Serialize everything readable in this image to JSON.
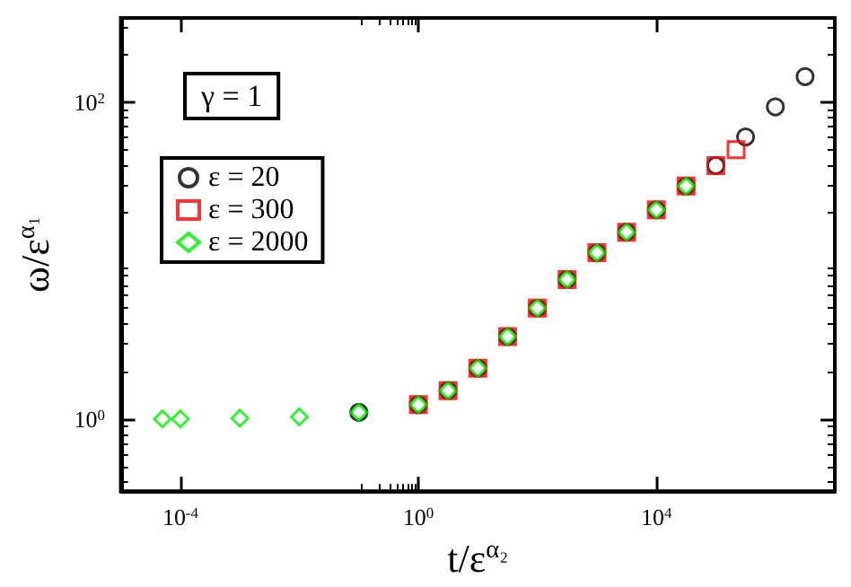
{
  "chart_data": {
    "type": "scatter",
    "xlabel": "t/ε$^{α₂}$",
    "ylabel": "ω/ε$^{α₁}$",
    "log": "xy",
    "xlim": [
      1e-05,
      10000000
    ],
    "ylim": [
      0.35,
      340
    ],
    "xticks": [
      {
        "value": 0.0001,
        "label": "10$^{-4}$"
      },
      {
        "value": 1,
        "label": "10$^{0}$"
      },
      {
        "value": 10000,
        "label": "10$^{4}$"
      }
    ],
    "yticks": [
      {
        "value": 1,
        "label": "10$^{0}$"
      },
      {
        "value": 100,
        "label": "10$^{2}$"
      }
    ],
    "grid": false,
    "legend": "top left",
    "annotations": [
      "γ = 1"
    ],
    "series": [
      {
        "name": "ε = 20",
        "color": "#000000",
        "marker": "circle",
        "x": [
          0.1,
          1,
          3.16,
          10,
          31.6,
          100,
          316,
          1000,
          3162,
          10000,
          31623,
          100000,
          316228,
          1000000,
          3162278
        ],
        "values": [
          1.1,
          1.23,
          1.51,
          2.09,
          3.31,
          5.01,
          7.59,
          11.2,
          15.1,
          20.9,
          29.5,
          39.8,
          60.3,
          93.3,
          145
        ]
      },
      {
        "name": "ε = 300",
        "color": "#ff0000",
        "marker": "square",
        "x": [
          1,
          3.16,
          10,
          31.6,
          100,
          316,
          1000,
          3162,
          10000,
          31623,
          100000,
          218776
        ],
        "values": [
          1.23,
          1.51,
          2.09,
          3.31,
          5.01,
          7.59,
          11.2,
          15.1,
          20.9,
          29.5,
          39.8,
          50.1
        ]
      },
      {
        "name": "ε = 2000",
        "color": "#00ee00",
        "marker": "diamond",
        "x": [
          5e-05,
          0.0001,
          0.001,
          0.01,
          0.1,
          1,
          3.16,
          10,
          31.6,
          100,
          316,
          1000,
          3162,
          10000,
          31623
        ],
        "values": [
          1,
          1,
          1.01,
          1.03,
          1.1,
          1.23,
          1.51,
          2.09,
          3.31,
          5.01,
          7.59,
          11.2,
          15.1,
          20.9,
          29.5
        ]
      }
    ]
  }
}
